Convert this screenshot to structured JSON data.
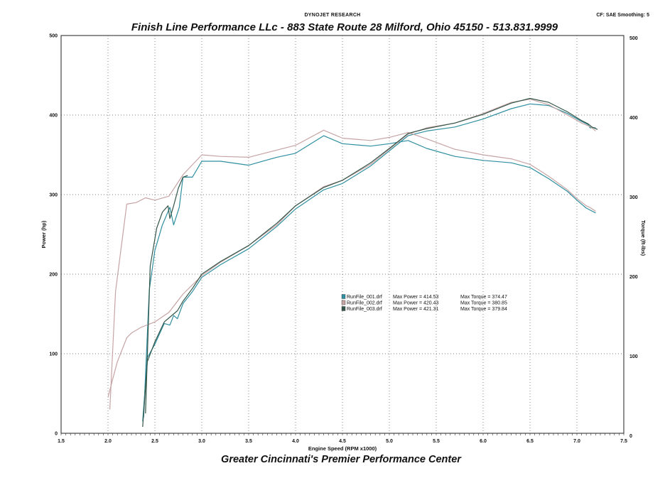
{
  "header": {
    "research": "DYNOJET RESEARCH",
    "correction": "CF: SAE  Smoothing: 5",
    "shop_line": "Finish Line Performance LLc - 883 State Route 28 Milford, Ohio 45150 - 513.831.9999"
  },
  "footer": {
    "tagline": "Greater Cincinnati's Premier Performance Center"
  },
  "chart_data": {
    "type": "line",
    "xlabel": "Engine Speed (RPM x1000)",
    "ylabel": "Power (hp)",
    "y2label": "Torque (ft-lbs)",
    "xlim": [
      1.5,
      7.5
    ],
    "ylim": [
      0,
      500
    ],
    "y2lim": [
      0,
      500
    ],
    "x_ticks": [
      "1.5",
      "2.0",
      "2.5",
      "3.0",
      "3.5",
      "4.0",
      "4.5",
      "5.0",
      "5.5",
      "6.0",
      "6.5",
      "7.0",
      "7.5"
    ],
    "y_ticks": [
      "0",
      "100",
      "200",
      "300",
      "400",
      "500"
    ],
    "y2_ticks": [
      "0",
      "100",
      "200",
      "300",
      "400",
      "500"
    ],
    "grid": true,
    "legend_position": "center",
    "series": [
      {
        "name": "RunFile_001.drf",
        "color": "#2f8fa0",
        "max_power_label": "Max Power = 414.53",
        "max_torque_label": "Max Torque = 374.47",
        "power": {
          "x": [
            2.37,
            2.42,
            2.5,
            2.6,
            2.66,
            2.7,
            2.74,
            2.8,
            2.9,
            3.0,
            3.2,
            3.5,
            3.8,
            4.0,
            4.3,
            4.5,
            4.8,
            5.0,
            5.2,
            5.4,
            5.7,
            6.0,
            6.3,
            6.5,
            6.7,
            6.9,
            7.05,
            7.12,
            7.14,
            7.2
          ],
          "y": [
            15,
            95,
            112,
            138,
            136,
            148,
            144,
            163,
            178,
            196,
            212,
            232,
            260,
            282,
            306,
            314,
            336,
            355,
            374,
            380,
            385,
            395,
            408,
            414,
            412,
            402,
            392,
            388,
            384,
            384
          ]
        },
        "torque": {
          "x": [
            2.38,
            2.44,
            2.5,
            2.58,
            2.66,
            2.7,
            2.76,
            2.8,
            2.9,
            3.0,
            3.2,
            3.5,
            3.8,
            4.0,
            4.3,
            4.5,
            4.8,
            5.0,
            5.2,
            5.4,
            5.7,
            6.0,
            6.3,
            6.5,
            6.7,
            6.9,
            7.0,
            7.1,
            7.15,
            7.2
          ],
          "y": [
            20,
            180,
            230,
            262,
            284,
            262,
            284,
            322,
            322,
            342,
            342,
            337,
            347,
            352,
            374,
            364,
            361,
            364,
            368,
            358,
            348,
            343,
            340,
            334,
            320,
            304,
            293,
            283,
            280,
            277
          ]
        }
      },
      {
        "name": "RunFile_002.drf",
        "color": "#c7a4a4",
        "max_power_label": "Max Power = 420.43",
        "max_torque_label": "Max Torque = 380.85",
        "power": {
          "x": [
            2.0,
            2.05,
            2.1,
            2.2,
            2.25,
            2.35,
            2.5,
            2.65,
            2.8,
            3.0,
            3.2,
            3.5,
            3.8,
            4.0,
            4.3,
            4.5,
            4.8,
            5.0,
            5.2,
            5.4,
            5.7,
            6.0,
            6.3,
            6.5,
            6.7,
            6.9,
            7.05,
            7.15,
            7.2
          ],
          "y": [
            45,
            68,
            90,
            120,
            126,
            133,
            140,
            152,
            175,
            198,
            215,
            236,
            262,
            286,
            310,
            318,
            338,
            357,
            376,
            384,
            390,
            402,
            416,
            420,
            413,
            400,
            390,
            385,
            380
          ]
        },
        "torque": {
          "x": [
            2.02,
            2.08,
            2.15,
            2.2,
            2.3,
            2.4,
            2.5,
            2.65,
            2.8,
            3.0,
            3.2,
            3.5,
            3.8,
            4.0,
            4.3,
            4.5,
            4.8,
            5.0,
            5.2,
            5.4,
            5.7,
            6.0,
            6.3,
            6.5,
            6.7,
            6.9,
            7.0,
            7.1,
            7.15,
            7.2
          ],
          "y": [
            30,
            178,
            242,
            288,
            290,
            296,
            293,
            298,
            325,
            350,
            348,
            347,
            356,
            362,
            381,
            371,
            368,
            372,
            378,
            370,
            357,
            350,
            345,
            338,
            323,
            306,
            295,
            286,
            283,
            279
          ]
        }
      },
      {
        "name": "RunFile_003.drf",
        "color": "#34564a",
        "max_power_label": "Max Power = 421.31",
        "max_torque_label": "Max Torque = 379.84",
        "power": {
          "x": [
            2.37,
            2.42,
            2.5,
            2.6,
            2.66,
            2.7,
            2.74,
            2.8,
            2.9,
            3.0,
            3.2,
            3.5,
            3.8,
            4.0,
            4.3,
            4.5,
            4.8,
            5.0,
            5.2,
            5.4,
            5.7,
            6.0,
            6.3,
            6.5,
            6.7,
            6.9,
            7.05,
            7.12,
            7.16,
            7.22
          ],
          "y": [
            8,
            90,
            115,
            140,
            146,
            150,
            154,
            166,
            182,
            200,
            216,
            236,
            264,
            286,
            309,
            318,
            340,
            358,
            377,
            383,
            390,
            401,
            415,
            421,
            416,
            404,
            393,
            389,
            385,
            382
          ]
        },
        "torque": {
          "x": [
            2.4,
            2.45,
            2.52,
            2.58,
            2.64,
            2.66,
            2.7,
            2.75,
            2.8,
            2.85
          ],
          "y": [
            25,
            210,
            258,
            278,
            286,
            270,
            286,
            308,
            322,
            324
          ]
        }
      }
    ]
  }
}
